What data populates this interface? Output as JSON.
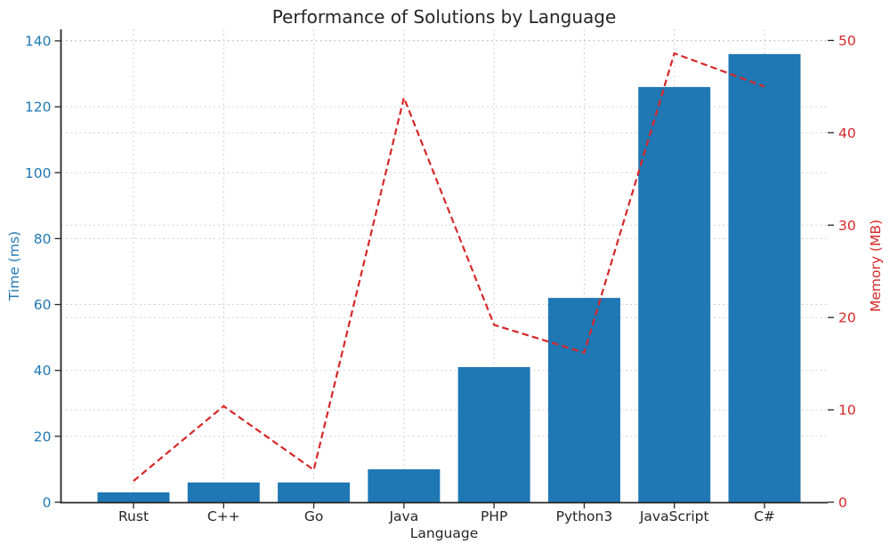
{
  "chart_data": {
    "type": "bar+line",
    "title": "Performance of Solutions by Language",
    "xlabel": "Language",
    "ylabel_left": "Time (ms)",
    "ylabel_right": "Memory (MB)",
    "categories": [
      "Rust",
      "C++",
      "Go",
      "Java",
      "PHP",
      "Python3",
      "JavaScript",
      "C#"
    ],
    "series": [
      {
        "name": "Time (ms)",
        "type": "bar",
        "axis": "left",
        "color": "#1f77b4",
        "values": [
          3,
          6,
          6,
          10,
          41,
          62,
          126,
          136
        ]
      },
      {
        "name": "Memory (MB)",
        "type": "line",
        "axis": "right",
        "color": "#d62728",
        "line_style": "dashed",
        "values": [
          2.3,
          10.4,
          3.5,
          43.8,
          19.2,
          16.2,
          48.6,
          45.0
        ]
      }
    ],
    "left_axis": {
      "ticks": [
        0,
        20,
        40,
        60,
        80,
        100,
        120,
        140
      ],
      "range": [
        0,
        143.5
      ],
      "color": "#1f77b4"
    },
    "right_axis": {
      "ticks": [
        0,
        10,
        20,
        30,
        40,
        50
      ],
      "range": [
        0,
        51.2
      ],
      "color": "#d62728"
    },
    "grid": true,
    "grid_color": "#cfcfcf",
    "legend": "none",
    "spine_color": "#262626",
    "tick_color": "#262626"
  }
}
